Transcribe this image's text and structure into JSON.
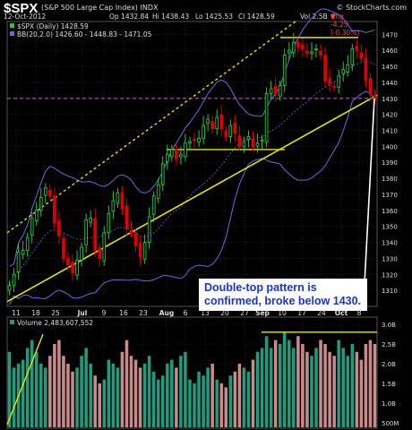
{
  "header": {
    "symbol": "$SPX",
    "name": "(S&P 500 Large Cap Index)",
    "exchange": "INDX",
    "watermark": "© StockCharts.com",
    "date": "12-Oct-2012",
    "open": "Op 1432.84",
    "high": "Hi 1438.43",
    "low": "Lo 1425.53",
    "close": "Cl 1428.59",
    "volume": "Vol 2.5B",
    "change": "Chg -4.25 (-0.30%)",
    "change_arrow": "▼"
  },
  "legend": {
    "main": "$SPX (Daily) 1428.59",
    "bb": "BB(20,2.0) 1426.60 - 1448.83 - 1471.05",
    "volume": "Volume 2,483,607,552"
  },
  "annotation": {
    "line1": "Double-top pattern is",
    "line2": "confirmed, broke below 1430."
  },
  "colors": {
    "bg": "#000000",
    "up": "#22c744",
    "down": "#e00000",
    "bb": "#6a6ae0",
    "trend": "#e5e500",
    "support": "#cc33cc",
    "vol_up": "#1f9b7e",
    "vol_down": "#c98a8a",
    "grid": "#333333"
  },
  "chart_data": [
    {
      "type": "candlestick",
      "title": "$SPX (Daily)",
      "ylim": [
        1300,
        1478
      ],
      "yticks": [
        "1470",
        "1460",
        "1450",
        "1440",
        "1430",
        "1420",
        "1410",
        "1400",
        "1390",
        "1380",
        "1370",
        "1360",
        "1350",
        "1340",
        "1330",
        "1320",
        "1310"
      ],
      "xticks": [
        "11",
        "18",
        "25",
        "Jul",
        "9",
        "16",
        "23",
        "Aug",
        "6",
        "13",
        "20",
        "27",
        "Sep",
        "10",
        "17",
        "24",
        "Oct",
        "8"
      ],
      "close": [
        1313,
        1320,
        1334,
        1335,
        1343,
        1355,
        1360,
        1368,
        1374,
        1369,
        1352,
        1344,
        1330,
        1326,
        1321,
        1329,
        1337,
        1354,
        1355,
        1335,
        1330,
        1346,
        1358,
        1366,
        1371,
        1361,
        1349,
        1346,
        1338,
        1331,
        1340,
        1356,
        1369,
        1376,
        1389,
        1395,
        1398,
        1392,
        1395,
        1402,
        1403,
        1404,
        1405,
        1413,
        1417,
        1411,
        1418,
        1411,
        1406,
        1413,
        1408,
        1400,
        1403,
        1406,
        1400,
        1402,
        1404,
        1433,
        1436,
        1433,
        1438,
        1457,
        1460,
        1465,
        1462,
        1461,
        1458,
        1459,
        1461,
        1457,
        1441,
        1439,
        1437,
        1444,
        1448,
        1451,
        1461,
        1460,
        1455,
        1441,
        1433,
        1429
      ],
      "support_level": 1430,
      "resistance_level": 1468,
      "mid_range_level": 1398,
      "annotations": [
        "Double-top pattern is confirmed, broke below 1430."
      ]
    },
    {
      "type": "bar",
      "title": "Volume",
      "ylim": [
        0.5,
        3.0
      ],
      "yticks": [
        "3.0B",
        "2.5B",
        "2.0B",
        "1.5B",
        "1.0B",
        "500M"
      ],
      "volume_b": [
        2.3,
        1.9,
        2.0,
        2.1,
        2.4,
        2.6,
        2.3,
        2.0,
        1.9,
        2.2,
        2.5,
        2.6,
        2.2,
        2.0,
        1.8,
        1.9,
        2.2,
        2.4,
        2.0,
        1.7,
        1.5,
        1.6,
        2.1,
        2.0,
        1.9,
        2.3,
        2.6,
        2.2,
        2.1,
        1.9,
        2.0,
        2.2,
        1.8,
        1.6,
        1.7,
        2.0,
        2.1,
        1.9,
        2.2,
        2.3,
        1.6,
        1.5,
        1.8,
        1.7,
        1.9,
        2.0,
        1.6,
        1.5,
        1.4,
        1.7,
        1.8,
        2.0,
        1.9,
        1.8,
        2.1,
        2.3,
        2.4,
        2.7,
        2.4,
        2.6,
        2.5,
        2.8,
        2.6,
        2.4,
        2.7,
        2.5,
        2.3,
        2.2,
        2.4,
        2.6,
        2.5,
        2.3,
        2.2,
        2.6,
        2.4,
        2.2,
        2.5,
        2.3,
        2.1,
        2.5,
        2.6,
        2.5
      ],
      "volume_resistance": 2.8
    }
  ]
}
